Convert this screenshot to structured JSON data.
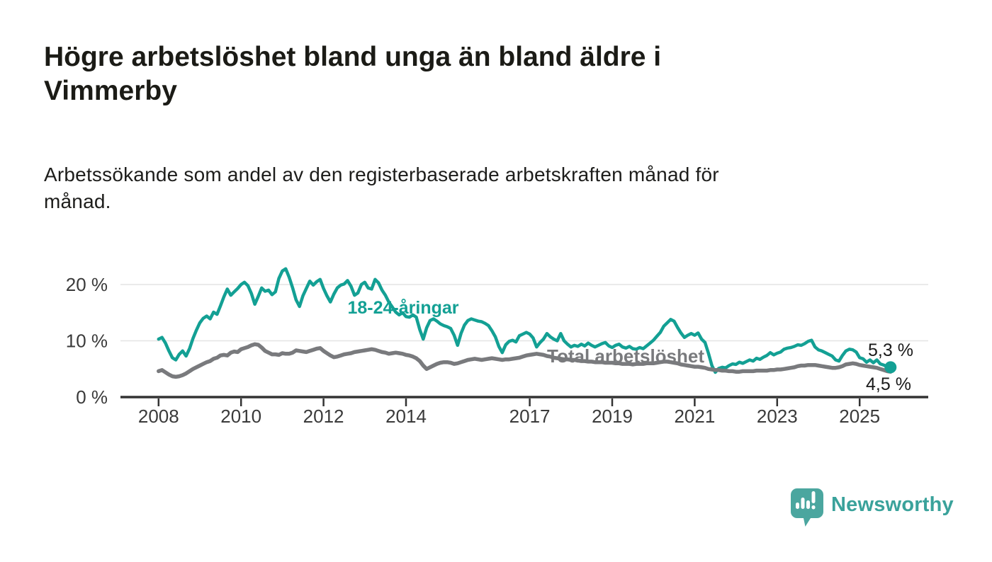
{
  "header": {
    "title_lines": [
      "Högre arbetslöshet bland unga än bland äldre i",
      "Vimmerby"
    ],
    "subtitle_lines": [
      "Arbetssökande som andel av den registerbaserade arbetskraften månad för",
      "månad."
    ]
  },
  "chart_data": {
    "type": "line",
    "unit": "%",
    "grid": "horizontal-only",
    "y_axis": {
      "range": [
        0,
        24
      ],
      "ticks": [
        {
          "value": 0,
          "label": "0 %"
        },
        {
          "value": 10,
          "label": "10 %"
        },
        {
          "value": 20,
          "label": "20 %"
        }
      ]
    },
    "x_axis": {
      "start_year": 2008,
      "end_year": 2025.8,
      "ticks": [
        {
          "year": 2008,
          "label": "2008"
        },
        {
          "year": 2010,
          "label": "2010"
        },
        {
          "year": 2012,
          "label": "2012"
        },
        {
          "year": 2014,
          "label": "2014"
        },
        {
          "year": 2017,
          "label": "2017"
        },
        {
          "year": 2019,
          "label": "2019"
        },
        {
          "year": 2021,
          "label": "2021"
        },
        {
          "year": 2023,
          "label": "2023"
        },
        {
          "year": 2025,
          "label": "2025"
        }
      ]
    },
    "series": [
      {
        "id": "youth",
        "label": "18-24-åringar",
        "color": "#13a094",
        "start_year": 2008,
        "points_per_year": 12,
        "end_label": "5,3 %",
        "last_value": 5.3,
        "values": [
          10.3,
          10.6,
          9.6,
          8.2,
          7.0,
          6.6,
          7.6,
          8.2,
          7.3,
          8.6,
          10.4,
          11.9,
          13.2,
          14.0,
          14.4,
          13.9,
          15.1,
          14.7,
          16.2,
          17.8,
          19.2,
          18.1,
          18.7,
          19.3,
          20.0,
          20.4,
          19.8,
          18.4,
          16.5,
          17.9,
          19.4,
          18.8,
          19.0,
          18.2,
          18.7,
          21.1,
          22.4,
          22.8,
          21.3,
          19.4,
          17.3,
          16.1,
          18.0,
          19.3,
          20.6,
          19.9,
          20.5,
          20.9,
          19.3,
          18.0,
          16.9,
          18.3,
          19.4,
          19.9,
          20.1,
          20.7,
          19.7,
          18.1,
          18.5,
          20.0,
          20.4,
          19.4,
          19.2,
          20.9,
          20.3,
          19.0,
          18.1,
          16.9,
          16.0,
          15.1,
          14.6,
          15.0,
          14.3,
          14.2,
          14.6,
          14.2,
          12.0,
          10.3,
          12.3,
          13.6,
          13.9,
          13.5,
          13.0,
          12.7,
          12.5,
          12.2,
          11.0,
          9.2,
          11.3,
          12.8,
          13.6,
          13.9,
          13.7,
          13.5,
          13.4,
          13.1,
          12.7,
          11.8,
          10.7,
          9.0,
          7.9,
          9.3,
          9.9,
          10.1,
          9.8,
          10.9,
          11.2,
          11.5,
          11.2,
          10.5,
          8.9,
          9.7,
          10.3,
          11.3,
          10.7,
          10.3,
          10.0,
          11.3,
          10.0,
          9.4,
          8.9,
          9.2,
          9.0,
          9.4,
          9.1,
          9.6,
          9.2,
          8.9,
          9.2,
          9.5,
          9.7,
          9.1,
          8.8,
          9.2,
          9.4,
          8.9,
          8.7,
          9.0,
          8.6,
          8.5,
          8.8,
          8.6,
          9.1,
          9.6,
          10.1,
          10.8,
          11.5,
          12.6,
          13.2,
          13.8,
          13.5,
          12.4,
          11.4,
          10.6,
          11.0,
          11.3,
          11.0,
          11.4,
          10.3,
          9.7,
          7.8,
          5.6,
          4.4,
          5.1,
          5.3,
          5.2,
          5.6,
          5.9,
          5.8,
          6.2,
          6.0,
          6.3,
          6.6,
          6.4,
          6.9,
          6.7,
          7.1,
          7.4,
          7.9,
          7.5,
          7.8,
          8.0,
          8.5,
          8.7,
          8.8,
          9.0,
          9.3,
          9.2,
          9.5,
          9.9,
          10.1,
          8.9,
          8.4,
          8.2,
          7.9,
          7.6,
          7.3,
          6.6,
          6.4,
          7.4,
          8.2,
          8.5,
          8.4,
          8.0,
          7.0,
          6.8,
          6.2,
          6.6,
          6.1,
          6.6,
          5.9,
          5.7,
          5.4,
          5.3
        ]
      },
      {
        "id": "total",
        "label": "Total arbetslöshet",
        "color": "#797a7d",
        "start_year": 2008,
        "points_per_year": 12,
        "end_label": "4,5 %",
        "last_value": 4.5,
        "values": [
          4.6,
          4.8,
          4.4,
          4.0,
          3.7,
          3.6,
          3.7,
          3.9,
          4.2,
          4.6,
          5.0,
          5.3,
          5.6,
          5.9,
          6.2,
          6.4,
          6.8,
          7.0,
          7.4,
          7.5,
          7.4,
          7.9,
          8.1,
          8.0,
          8.5,
          8.7,
          8.9,
          9.2,
          9.4,
          9.3,
          8.8,
          8.2,
          7.9,
          7.6,
          7.6,
          7.5,
          7.8,
          7.7,
          7.7,
          7.9,
          8.3,
          8.2,
          8.1,
          8.0,
          8.2,
          8.4,
          8.6,
          8.7,
          8.2,
          7.8,
          7.4,
          7.1,
          7.2,
          7.4,
          7.6,
          7.7,
          7.8,
          8.0,
          8.1,
          8.2,
          8.3,
          8.4,
          8.5,
          8.4,
          8.2,
          8.0,
          7.9,
          7.7,
          7.8,
          7.9,
          7.8,
          7.7,
          7.5,
          7.4,
          7.2,
          6.9,
          6.4,
          5.6,
          5.0,
          5.3,
          5.6,
          5.9,
          6.1,
          6.2,
          6.2,
          6.1,
          5.9,
          6.0,
          6.2,
          6.4,
          6.6,
          6.7,
          6.8,
          6.7,
          6.6,
          6.7,
          6.8,
          6.9,
          6.8,
          6.7,
          6.6,
          6.7,
          6.7,
          6.8,
          6.9,
          7.0,
          7.2,
          7.4,
          7.5,
          7.6,
          7.7,
          7.6,
          7.5,
          7.3,
          7.2,
          7.0,
          6.9,
          6.8,
          6.7,
          6.7,
          6.6,
          6.6,
          6.5,
          6.4,
          6.4,
          6.3,
          6.3,
          6.2,
          6.2,
          6.2,
          6.1,
          6.1,
          6.1,
          6.0,
          6.0,
          5.9,
          5.9,
          5.9,
          5.8,
          5.9,
          5.9,
          5.9,
          6.0,
          6.0,
          6.0,
          6.1,
          6.2,
          6.3,
          6.3,
          6.2,
          6.1,
          6.0,
          5.8,
          5.7,
          5.6,
          5.5,
          5.4,
          5.4,
          5.3,
          5.2,
          5.0,
          4.9,
          4.8,
          4.8,
          4.7,
          4.7,
          4.6,
          4.6,
          4.5,
          4.5,
          4.6,
          4.6,
          4.6,
          4.6,
          4.7,
          4.7,
          4.7,
          4.7,
          4.8,
          4.8,
          4.9,
          4.9,
          5.0,
          5.1,
          5.2,
          5.3,
          5.5,
          5.6,
          5.6,
          5.7,
          5.7,
          5.7,
          5.6,
          5.5,
          5.4,
          5.3,
          5.2,
          5.2,
          5.3,
          5.5,
          5.8,
          5.9,
          6.0,
          5.9,
          5.7,
          5.6,
          5.5,
          5.4,
          5.3,
          5.2,
          5.0,
          4.8,
          4.6,
          4.5
        ]
      }
    ],
    "colors": {
      "gridline": "#e4e4e4",
      "axis": "#333333",
      "tick_text": "#3a3a3a",
      "end_label_text": "#1a1a1a"
    }
  },
  "footer": {
    "brand": "Newsworthy"
  }
}
